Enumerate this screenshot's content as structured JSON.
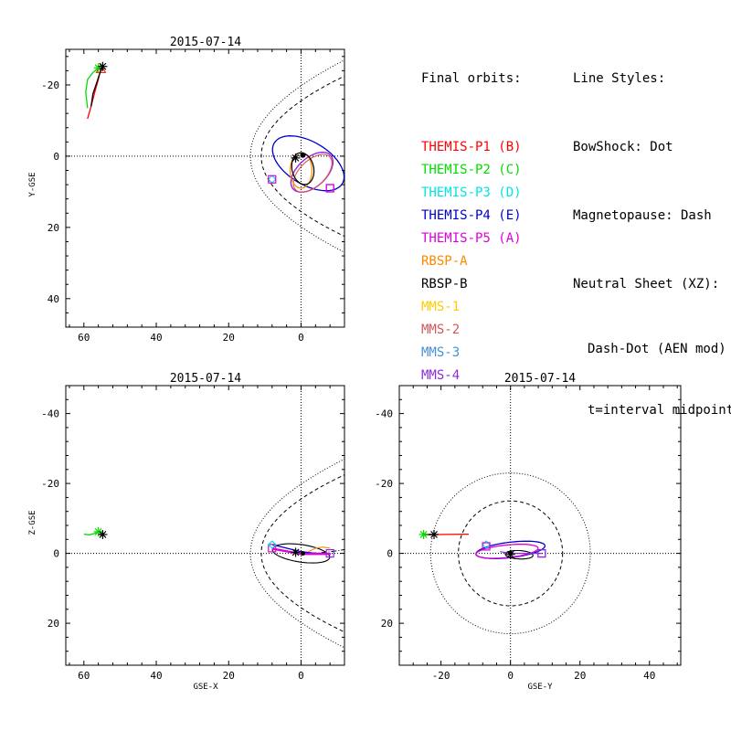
{
  "legend": {
    "orbits_header": "Final orbits:",
    "line_styles_header": "Line Styles:",
    "bowshock": "BowShock: Dot",
    "magnetopause": "Magnetopause: Dash",
    "neutral_sheet": "Neutral Sheet (XZ):",
    "neutral_sheet_line2": "Dash-Dot (AEN mod)",
    "neutral_sheet_line3": "t=interval midpoint"
  },
  "chart_data": [
    {
      "type": "line",
      "panel": "xy",
      "title": "2015-07-14",
      "xlabel": "",
      "ylabel": "Y-GSE",
      "xlim": [
        65,
        -12
      ],
      "ylim": [
        -30,
        48
      ],
      "xticks": [
        60,
        40,
        20,
        0
      ],
      "yticks": [
        -20,
        0,
        20,
        40
      ],
      "series": [
        {
          "name": "THEMIS-P1 (B)",
          "color": "#ff0000",
          "x": [
            59,
            58,
            57,
            56,
            55.3
          ],
          "y": [
            -10.5,
            -14,
            -18,
            -21.5,
            -24.5
          ],
          "end_marker": "triangle"
        },
        {
          "name": "THEMIS-P2 (C)",
          "color": "#00dd00",
          "x": [
            59,
            59.5,
            59,
            57.5,
            56
          ],
          "y": [
            -13.5,
            -18,
            -21.5,
            -23.5,
            -24.8
          ],
          "end_marker": "star"
        },
        {
          "name": "RBSP-B",
          "color": "#000000",
          "x": [
            58,
            57.5,
            56.5,
            55.7,
            54.8
          ],
          "y": [
            -14,
            -17.5,
            -20.5,
            -23,
            -25.2
          ],
          "end_marker": "star"
        }
      ]
    },
    {
      "type": "line",
      "panel": "xz",
      "title": "2015-07-14",
      "xlabel": "GSE-X",
      "ylabel": "Z-GSE",
      "xlim": [
        65,
        -12
      ],
      "ylim": [
        -48,
        32
      ],
      "xticks": [
        60,
        40,
        20,
        0
      ],
      "yticks": [
        -40,
        -20,
        0,
        20
      ],
      "series": [
        {
          "name": "THEMIS-P2 (C)",
          "color": "#00dd00",
          "x": [
            60,
            58.5,
            57,
            56
          ],
          "y": [
            -5.5,
            -5.3,
            -5.7,
            -6.2
          ],
          "end_marker": "star"
        },
        {
          "name": "RBSP-B",
          "color": "#000000",
          "x": [
            55.5,
            54.8
          ],
          "y": [
            -5.3,
            -5.4
          ],
          "end_marker": "star"
        }
      ]
    },
    {
      "type": "line",
      "panel": "yz",
      "title": "2015-07-14",
      "xlabel": "GSE-Y",
      "ylabel": "",
      "xlim": [
        -32,
        49
      ],
      "ylim": [
        -48,
        32
      ],
      "xticks": [
        -20,
        0,
        20,
        40
      ],
      "yticks": [
        -40,
        -20,
        0,
        20
      ],
      "series": [
        {
          "name": "THEMIS-P1 (B)",
          "color": "#ff0000",
          "x": [
            -25,
            -19,
            -12
          ],
          "y": [
            -5.3,
            -5.4,
            -5.5
          ]
        },
        {
          "name": "RBSP-B",
          "color": "#000000",
          "x": [
            -25,
            -22
          ],
          "y": [
            -5.4,
            -5.4
          ],
          "end_marker": "star"
        }
      ]
    }
  ]
}
